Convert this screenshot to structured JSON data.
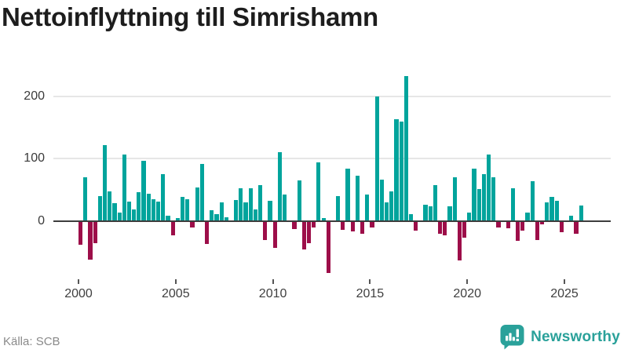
{
  "title": "Nettoinflyttning till Simrishamn",
  "source": "Källa: SCB",
  "brand": {
    "name": "Newsworthy",
    "icon": "bar-chart-speech-bubble-icon",
    "color": "#2aa19a"
  },
  "colors": {
    "positive_bar": "#00a49c",
    "negative_bar": "#9d0e49",
    "axis_line": "#3d3d3d",
    "gridline": "#e6e6e6",
    "title_text": "#1d1d1d",
    "tick_text": "#3f3f3f",
    "source_text": "#8a8a8a"
  },
  "chart_data": {
    "type": "bar",
    "title": "Nettoinflyttning till Simrishamn",
    "frequency": "quarterly",
    "start_period": "2000 Q1",
    "end_period": "2025 Q4",
    "x_tick_labels": [
      "2000",
      "2005",
      "2010",
      "2015",
      "2020",
      "2025"
    ],
    "y_tick_labels": [
      "0",
      "100",
      "200"
    ],
    "y_ticks": [
      0,
      100,
      200
    ],
    "ylim": [
      -95,
      245
    ],
    "grid": "horizontal-only",
    "legend": "none",
    "series": [
      {
        "name": "Nettoinflyttning",
        "values": [
          -38,
          70,
          -62,
          -36,
          40,
          122,
          48,
          28,
          14,
          106,
          31,
          19,
          46,
          97,
          44,
          35,
          31,
          75,
          8,
          -23,
          5,
          38,
          35,
          -10,
          54,
          92,
          -37,
          17,
          11,
          30,
          6,
          0,
          34,
          53,
          30,
          53,
          19,
          58,
          -30,
          32,
          -43,
          110,
          43,
          0,
          -13,
          65,
          -46,
          -36,
          -10,
          94,
          5,
          -84,
          0,
          40,
          -14,
          84,
          -17,
          72,
          -20,
          42,
          -11,
          200,
          66,
          30,
          47,
          163,
          160,
          232,
          11,
          -15,
          0,
          26,
          23,
          57,
          -20,
          -23,
          23,
          70,
          -63,
          -27,
          14,
          84,
          51,
          75,
          106,
          70,
          -10,
          0,
          -12,
          52,
          -32,
          -16,
          14,
          64,
          -30,
          -6,
          30,
          39,
          32,
          -18,
          0,
          8,
          -20,
          25
        ]
      }
    ]
  }
}
